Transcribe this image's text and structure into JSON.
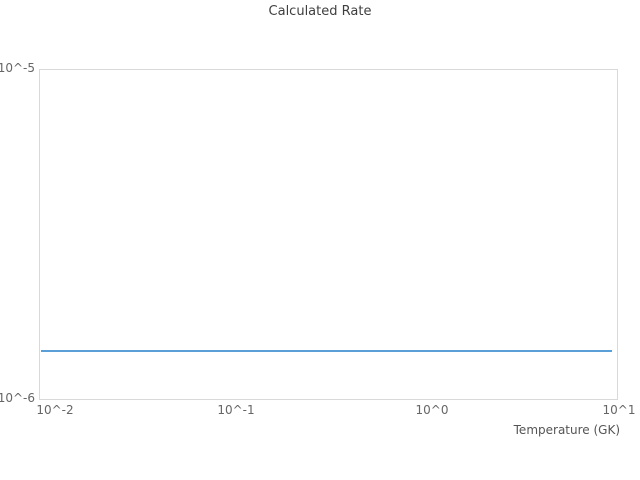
{
  "chart_data": {
    "type": "line",
    "title": "Calculated Rate",
    "xlabel": "Temperature (GK)",
    "ylabel": "",
    "x_scale": "log",
    "y_scale": "log",
    "xlim": [
      0.01,
      10
    ],
    "ylim": [
      1e-06,
      1e-05
    ],
    "x_ticks": [
      "10^-2",
      "10^-1",
      "10^0",
      "10^1"
    ],
    "y_ticks_top_to_bottom": [
      "10^-5",
      "10^-6"
    ],
    "grid": false,
    "legend": "none",
    "series": [
      {
        "name": "calculated rate",
        "color": "#5b9fd9",
        "shape": "constant-horizontal-line",
        "x": [
          0.01,
          10
        ],
        "y": [
          1.4e-06,
          1.4e-06
        ]
      }
    ],
    "colors": {
      "background": "#ffffff",
      "plot_border": "#d9d9d9",
      "title_text": "#3f3f3f",
      "tick_text": "#666666",
      "axis_label_text": "#555555",
      "line": "#5b9fd9"
    }
  }
}
